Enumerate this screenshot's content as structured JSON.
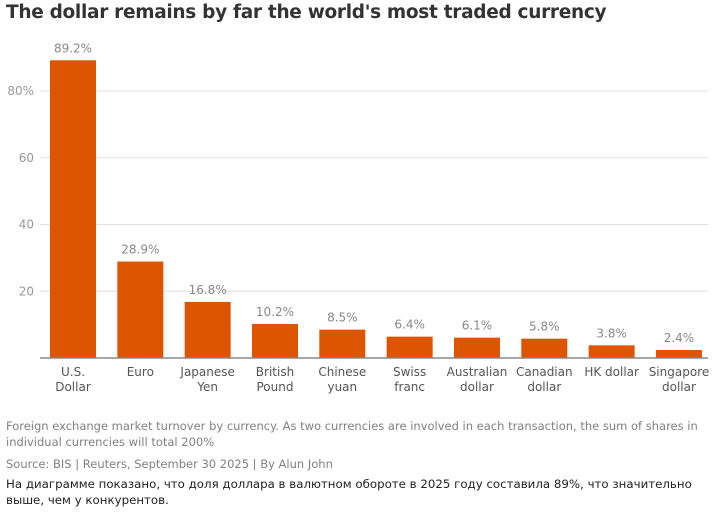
{
  "chart_data": {
    "type": "bar",
    "title": "The dollar remains by far the world's most traded currency",
    "categories": [
      [
        "U.S.",
        "Dollar"
      ],
      [
        "Euro"
      ],
      [
        "Japanese",
        "Yen"
      ],
      [
        "British",
        "Pound"
      ],
      [
        "Chinese",
        "yuan"
      ],
      [
        "Swiss",
        "franc"
      ],
      [
        "Australian",
        "dollar"
      ],
      [
        "Canadian",
        "dollar"
      ],
      [
        "HK dollar"
      ],
      [
        "Singapore",
        "dollar"
      ]
    ],
    "values": [
      89.2,
      28.9,
      16.8,
      10.2,
      8.5,
      6.4,
      6.1,
      5.8,
      3.8,
      2.4
    ],
    "data_labels": [
      "89.2%",
      "28.9%",
      "16.8%",
      "10.2%",
      "8.5%",
      "6.4%",
      "6.1%",
      "5.8%",
      "3.8%",
      "2.4%"
    ],
    "yticks": [
      20,
      40,
      60,
      80
    ],
    "ytick_labels": [
      "20",
      "40",
      "60",
      "80%"
    ],
    "ylim": [
      0,
      95
    ],
    "grid": true,
    "bar_color": "#dd5500",
    "xlabel": "",
    "ylabel": ""
  },
  "footnote": "Foreign exchange market turnover by currency. As two currencies are involved in each transaction, the sum of shares in individual currencies will total 200%",
  "source": "Source: BIS | Reuters, September 30 2025 | By Alun John",
  "description": "На диаграмме показано, что доля доллара в валютном обороте в 2025 году составила 89%, что значительно выше, чем у конкурентов."
}
